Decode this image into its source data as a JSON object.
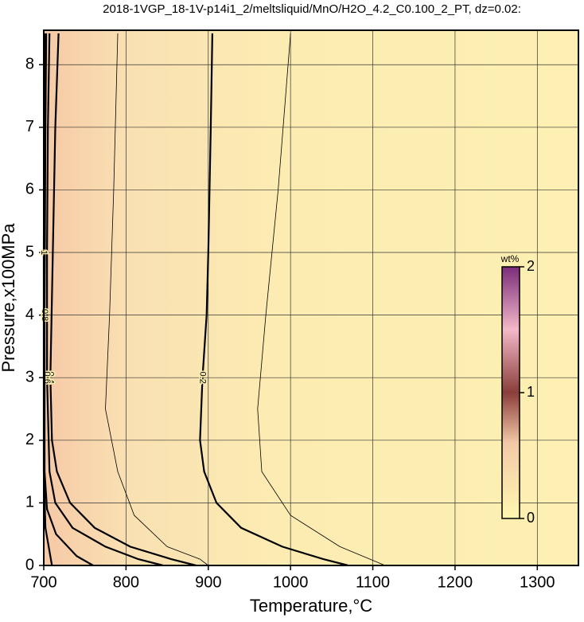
{
  "chart_data": {
    "type": "contour",
    "title": "2018-1VGP_18-1V-p14i1_2/meltsliquid/MnO/H2O_4.2_C0.100_2_PT, dz=0.02:",
    "x_label": "Temperature,°C",
    "y_label": "Pressure,x100MPa",
    "xlim": [
      700,
      1350
    ],
    "ylim": [
      0,
      8.55
    ],
    "xticks": [
      700,
      800,
      900,
      1000,
      1100,
      1200,
      1300
    ],
    "yticks": [
      0,
      1,
      2,
      3,
      4,
      5,
      6,
      7,
      8
    ],
    "grid": true,
    "line_color": "#000000",
    "contours": [
      {
        "level": 0.1,
        "x": [
          1000,
          985,
          970,
          960,
          965,
          1000,
          1060,
          1115
        ],
        "y": [
          8.5,
          6,
          4,
          2.5,
          1.5,
          0.8,
          0.3,
          0
        ]
      },
      {
        "level": 0.2,
        "x": [
          905,
          903,
          900,
          898,
          893,
          890,
          895,
          910,
          940,
          990,
          1040,
          1070
        ],
        "y": [
          8.5,
          7,
          5,
          4,
          3,
          2,
          1.5,
          1,
          0.6,
          0.3,
          0.1,
          0
        ]
      },
      {
        "level": 0.3,
        "x": [
          790,
          785,
          780,
          775,
          790,
          810,
          850,
          890,
          900
        ],
        "y": [
          8.5,
          6,
          4,
          2.5,
          1.5,
          0.8,
          0.3,
          0.1,
          0
        ]
      },
      {
        "level": 0.4,
        "x": [
          718,
          714,
          711,
          708,
          710,
          716,
          732,
          762,
          805,
          855,
          885
        ],
        "y": [
          8.5,
          7,
          5,
          3,
          2,
          1.5,
          1,
          0.6,
          0.3,
          0.1,
          0
        ]
      },
      {
        "level": 0.6,
        "x": [
          707,
          705,
          704,
          704,
          707,
          714,
          735,
          775,
          815,
          845
        ],
        "y": [
          8.5,
          7,
          5,
          3,
          1.5,
          1,
          0.6,
          0.3,
          0.1,
          0
        ]
      },
      {
        "level": 0.8,
        "x": [
          703,
          702,
          701,
          701,
          704,
          715,
          740,
          760
        ],
        "y": [
          8.5,
          7,
          4,
          1.5,
          0.9,
          0.5,
          0.15,
          0
        ]
      },
      {
        "level": 1,
        "x": [
          701,
          700,
          700,
          702,
          710
        ],
        "y": [
          8.5,
          5,
          1.5,
          0.6,
          0
        ]
      }
    ],
    "colorbar": {
      "label": "wt%",
      "lim": [
        0,
        2
      ],
      "ticks": [
        0,
        1,
        2
      ]
    }
  }
}
